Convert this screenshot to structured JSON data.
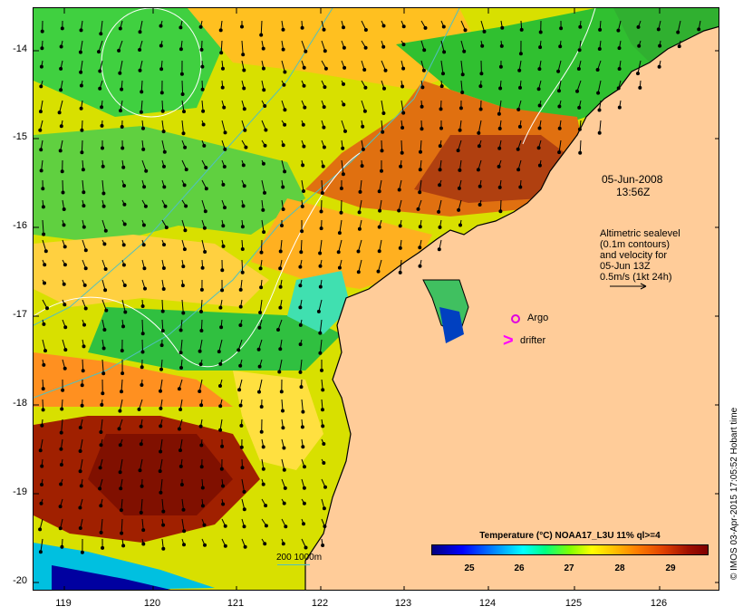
{
  "map": {
    "date": "05-Jun-2008",
    "time": "13:56Z",
    "altimetry_note": [
      "Altimetric sealevel",
      "(0.1m contours)",
      "and velocity for",
      "05-Jun 13Z",
      "0.5m/s (1kt 24h)"
    ],
    "argo_label": "Argo",
    "drifter_label": "drifter",
    "scale_label": "200  1000m",
    "credit": "© IMOS 03-Apr-2015 17:05:52 Hobart time",
    "y_ticks": [
      "-14",
      "-15",
      "-16",
      "-17",
      "-18",
      "-19",
      "-20"
    ],
    "x_ticks": [
      "119",
      "120",
      "121",
      "122",
      "123",
      "124",
      "125",
      "126"
    ]
  },
  "legend": {
    "title": "Temperature (°C) NOAA17_L3U 11% ql>=4",
    "ticks": [
      "25",
      "26",
      "27",
      "28",
      "29"
    ]
  },
  "colors": {
    "land": "#ffcc99",
    "coast": "#000000",
    "contour": "#ffffff",
    "bathymetry": "#50c0c0",
    "argo": "#e000e0",
    "drifter": "#ff00ff"
  }
}
